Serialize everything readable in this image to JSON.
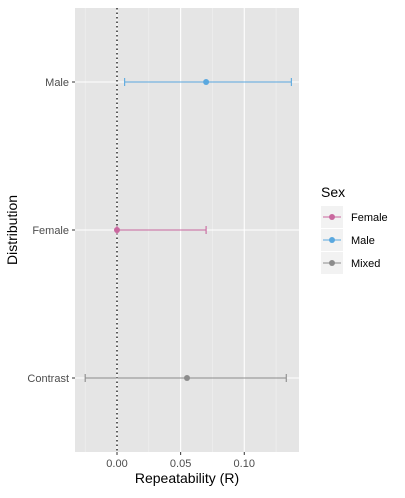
{
  "chart_data": {
    "type": "errorbar",
    "xlabel": "Repeatability (R)",
    "ylabel": "Distribution",
    "categories": [
      "Contrast",
      "Female",
      "Male"
    ],
    "xlim": [
      -0.033,
      0.143
    ],
    "x_ticks": [
      0.0,
      0.05,
      0.1
    ],
    "x_tick_labels": [
      "0.00",
      "0.05",
      "0.10"
    ],
    "reference_line": {
      "x": 0,
      "style": "dotted"
    },
    "grid": true,
    "legend": {
      "title": "Sex",
      "placement": "right",
      "entries": [
        {
          "name": "Female",
          "color": "#c9679e"
        },
        {
          "name": "Male",
          "color": "#5aa8df"
        },
        {
          "name": "Mixed",
          "color": "#8c8c8c"
        }
      ]
    },
    "points": [
      {
        "category": "Male",
        "series": "Male",
        "estimate": 0.07,
        "lower": 0.006,
        "upper": 0.137
      },
      {
        "category": "Female",
        "series": "Female",
        "estimate": 0.0,
        "lower": 0.0,
        "upper": 0.07
      },
      {
        "category": "Contrast",
        "series": "Mixed",
        "estimate": 0.055,
        "lower": -0.025,
        "upper": 0.133
      }
    ]
  }
}
